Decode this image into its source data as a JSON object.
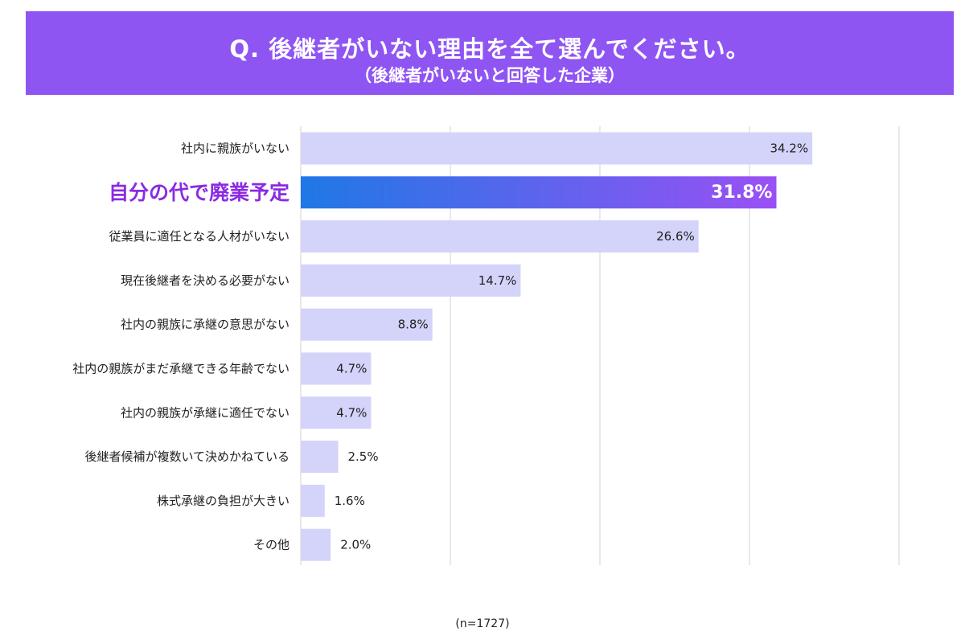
{
  "header": {
    "title": "Q. 後継者がいない理由を全て選んでください。",
    "subtitle": "（後継者がいないと回答した企業）"
  },
  "footnote": "(n=1727)",
  "colors": {
    "banner": "#8f55f3",
    "bar": "#d4d3fa",
    "highlight_start": "#1f78e6",
    "highlight_end": "#9a50f4",
    "highlight_label": "#8b2be2",
    "grid": "#dddddd"
  },
  "chart_data": {
    "type": "bar",
    "orientation": "horizontal",
    "categories": [
      "社内に親族がいない",
      "自分の代で廃業予定",
      "従業員に適任となる人材がいない",
      "現在後継者を決める必要がない",
      "社内の親族に承継の意思がない",
      "社内の親族がまだ承継できる年齢でない",
      "社内の親族が承継に適任でない",
      "後継者候補が複数いて決めかねている",
      "株式承継の負担が大きい",
      "その他"
    ],
    "values": [
      34.2,
      31.8,
      26.6,
      14.7,
      8.8,
      4.7,
      4.7,
      2.5,
      1.6,
      2.0
    ],
    "value_labels": [
      "34.2%",
      "31.8%",
      "26.6%",
      "14.7%",
      "8.8%",
      "4.7%",
      "4.7%",
      "2.5%",
      "1.6%",
      "2.0%"
    ],
    "highlight_index": 1,
    "xlim": [
      0,
      40
    ],
    "grid": true,
    "legend": "none"
  }
}
